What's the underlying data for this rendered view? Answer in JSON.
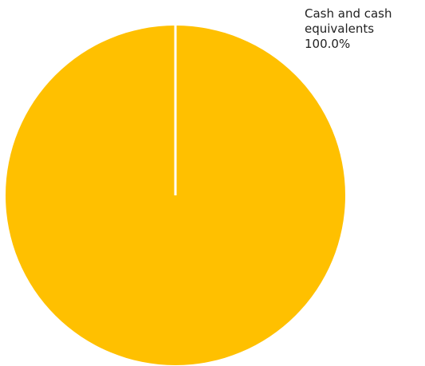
{
  "chart_data": {
    "type": "pie",
    "slices": [
      {
        "label": "Cash and cash equivalents",
        "value": 100.0,
        "value_label": "100.0%",
        "color": "#FFC000"
      }
    ],
    "start_angle_deg": 0,
    "separator_color": "#ffffff",
    "legend": "none",
    "data_labels": "outside-top-right"
  }
}
